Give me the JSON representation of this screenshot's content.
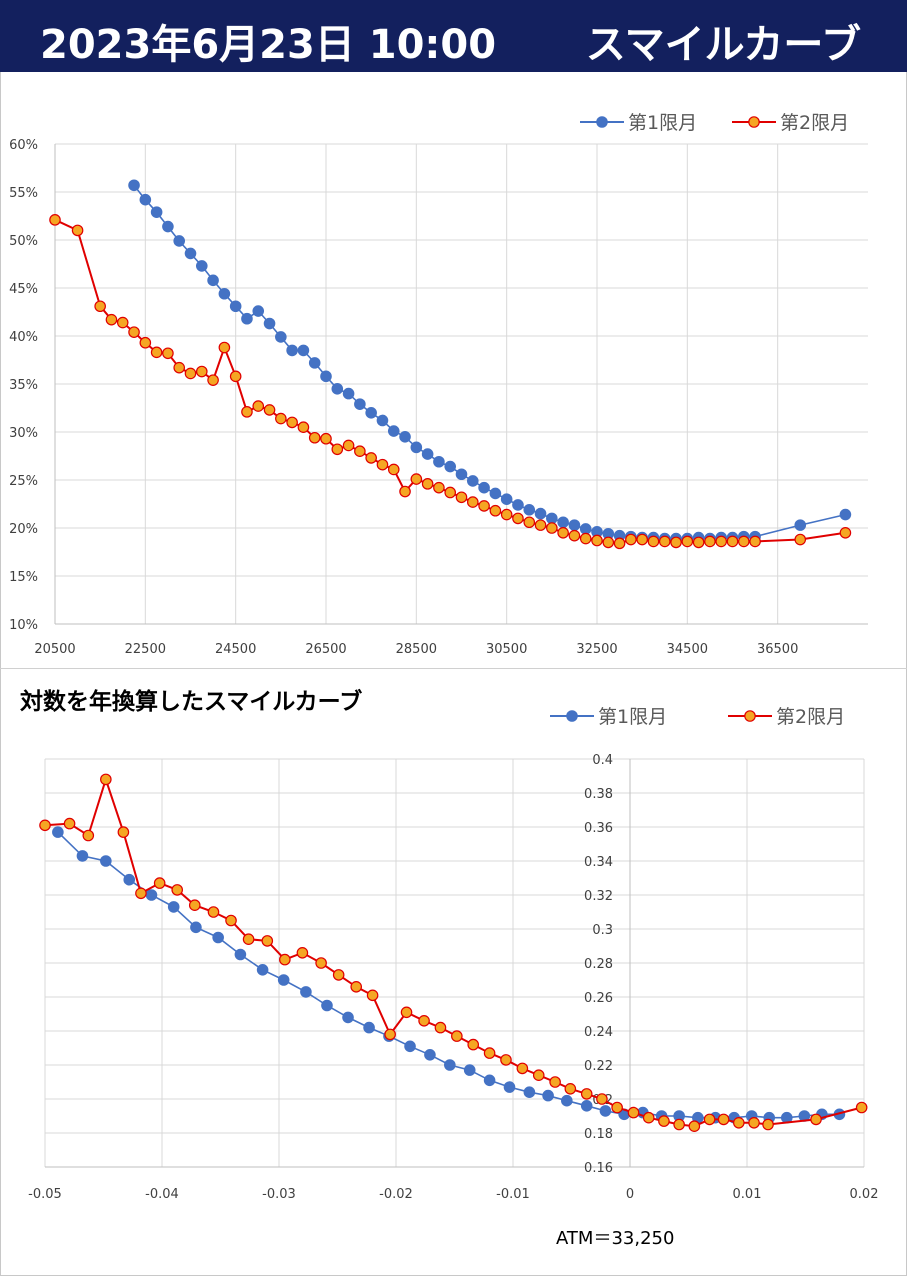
{
  "header": {
    "date": "2023年6月23日 10:00",
    "title": "スマイルカーブ"
  },
  "colors": {
    "banner_bg": "#13205e",
    "series1": "#4472c4",
    "series2_line": "#e00000",
    "series2_fill": "#f5a623"
  },
  "chart_data": [
    {
      "type": "line",
      "title": "",
      "xlabel": "",
      "ylabel": "",
      "xlim": [
        20500,
        38500
      ],
      "ylim": [
        10,
        60
      ],
      "x_ticks": [
        20500,
        22500,
        24500,
        26500,
        28500,
        30500,
        32500,
        34500,
        36500
      ],
      "x_tick_labels": [
        "20500",
        "22500",
        "24500",
        "26500",
        "28500",
        "30500",
        "32500",
        "34500",
        "36500"
      ],
      "y_ticks": [
        10,
        15,
        20,
        25,
        30,
        35,
        40,
        45,
        50,
        55,
        60
      ],
      "y_tick_labels": [
        "10%",
        "15%",
        "20%",
        "25%",
        "30%",
        "35%",
        "40%",
        "45%",
        "50%",
        "55%",
        "60%"
      ],
      "grid": true,
      "legend": "top-right",
      "series": [
        {
          "name": "第1限月",
          "x": [
            22250,
            22500,
            22750,
            23000,
            23250,
            23500,
            23750,
            24000,
            24250,
            24500,
            24750,
            25000,
            25250,
            25500,
            25750,
            26000,
            26250,
            26500,
            26750,
            27000,
            27250,
            27500,
            27750,
            28000,
            28250,
            28500,
            28750,
            29000,
            29250,
            29500,
            29750,
            30000,
            30250,
            30500,
            30750,
            31000,
            31250,
            31500,
            31750,
            32000,
            32250,
            32500,
            32750,
            33000,
            33250,
            33500,
            33750,
            34000,
            34250,
            34500,
            34750,
            35000,
            35250,
            35500,
            35750,
            36000,
            37000,
            38000
          ],
          "values": [
            55.7,
            54.2,
            52.9,
            51.4,
            49.9,
            48.6,
            47.3,
            45.8,
            44.4,
            43.1,
            41.8,
            42.6,
            41.3,
            39.9,
            38.5,
            38.5,
            37.2,
            35.8,
            34.5,
            34.0,
            32.9,
            32.0,
            31.2,
            30.1,
            29.5,
            28.4,
            27.7,
            26.9,
            26.4,
            25.6,
            24.9,
            24.2,
            23.6,
            23.0,
            22.4,
            21.9,
            21.5,
            21.0,
            20.6,
            20.3,
            19.9,
            19.6,
            19.4,
            19.2,
            19.1,
            19.0,
            19.0,
            18.9,
            18.9,
            18.9,
            19.0,
            18.9,
            19.0,
            19.0,
            19.1,
            19.1,
            20.3,
            21.4
          ]
        },
        {
          "name": "第2限月",
          "x": [
            20500,
            21000,
            21500,
            21750,
            22000,
            22250,
            22500,
            22750,
            23000,
            23250,
            23500,
            23750,
            24000,
            24250,
            24500,
            24750,
            25000,
            25250,
            25500,
            25750,
            26000,
            26250,
            26500,
            26750,
            27000,
            27250,
            27500,
            27750,
            28000,
            28250,
            28500,
            28750,
            29000,
            29250,
            29500,
            29750,
            30000,
            30250,
            30500,
            30750,
            31000,
            31250,
            31500,
            31750,
            32000,
            32250,
            32500,
            32750,
            33000,
            33250,
            33500,
            33750,
            34000,
            34250,
            34500,
            34750,
            35000,
            35250,
            35500,
            35750,
            36000,
            37000,
            38000
          ],
          "values": [
            52.1,
            51.0,
            43.1,
            41.7,
            41.4,
            40.4,
            39.3,
            38.3,
            38.2,
            36.7,
            36.1,
            36.3,
            35.4,
            38.8,
            35.8,
            32.1,
            32.7,
            32.3,
            31.4,
            31.0,
            30.5,
            29.4,
            29.3,
            28.2,
            28.6,
            28.0,
            27.3,
            26.6,
            26.1,
            23.8,
            25.1,
            24.6,
            24.2,
            23.7,
            23.2,
            22.7,
            22.3,
            21.8,
            21.4,
            21.0,
            20.6,
            20.3,
            20.0,
            19.5,
            19.2,
            18.9,
            18.7,
            18.5,
            18.4,
            18.8,
            18.8,
            18.6,
            18.6,
            18.5,
            18.6,
            18.5,
            18.6,
            18.6,
            18.6,
            18.6,
            18.6,
            18.8,
            19.5
          ]
        }
      ]
    },
    {
      "type": "line",
      "title": "対数を年換算したスマイルカーブ",
      "xlabel": "",
      "ylabel": "",
      "xlim": [
        -0.05,
        0.02
      ],
      "ylim": [
        0.16,
        0.4
      ],
      "x_ticks": [
        -0.05,
        -0.04,
        -0.03,
        -0.02,
        -0.01,
        0,
        0.01,
        0.02
      ],
      "x_tick_labels": [
        "-0.05",
        "-0.04",
        "-0.03",
        "-0.02",
        "-0.01",
        "0",
        "0.01",
        "0.02"
      ],
      "y_ticks": [
        0.16,
        0.18,
        0.2,
        0.22,
        0.24,
        0.26,
        0.28,
        0.3,
        0.32,
        0.34,
        0.36,
        0.38,
        0.4
      ],
      "y_tick_labels": [
        "0.16",
        "0.18",
        "0.2",
        "0.22",
        "0.24",
        "0.26",
        "0.28",
        "0.3",
        "0.32",
        "0.34",
        "0.36",
        "0.38",
        "0.4"
      ],
      "grid": true,
      "legend": "top-right",
      "annotation": "ATM＝33,250",
      "series": [
        {
          "name": "第1限月",
          "x": [
            -0.0489,
            -0.0468,
            -0.0448,
            -0.0428,
            -0.0409,
            -0.039,
            -0.0371,
            -0.0352,
            -0.0333,
            -0.0314,
            -0.0296,
            -0.0277,
            -0.0259,
            -0.0241,
            -0.0223,
            -0.0206,
            -0.0188,
            -0.0171,
            -0.0154,
            -0.0137,
            -0.012,
            -0.0103,
            -0.0086,
            -0.007,
            -0.0054,
            -0.0037,
            -0.0021,
            -0.0005,
            0.0011,
            0.0027,
            0.0042,
            0.0058,
            0.0073,
            0.0089,
            0.0104,
            0.0119,
            0.0134,
            0.0149,
            0.0164,
            0.0179
          ],
          "values": [
            0.357,
            0.343,
            0.34,
            0.329,
            0.32,
            0.313,
            0.301,
            0.295,
            0.285,
            0.276,
            0.27,
            0.263,
            0.255,
            0.248,
            0.242,
            0.237,
            0.231,
            0.226,
            0.22,
            0.217,
            0.211,
            0.207,
            0.204,
            0.202,
            0.199,
            0.196,
            0.193,
            0.191,
            0.192,
            0.19,
            0.19,
            0.189,
            0.189,
            0.189,
            0.19,
            0.189,
            0.189,
            0.19,
            0.191,
            0.191
          ]
        },
        {
          "name": "第2限月",
          "x": [
            -0.05,
            -0.0479,
            -0.0463,
            -0.0448,
            -0.0433,
            -0.0418,
            -0.0402,
            -0.0387,
            -0.0372,
            -0.0356,
            -0.0341,
            -0.0326,
            -0.031,
            -0.0295,
            -0.028,
            -0.0264,
            -0.0249,
            -0.0234,
            -0.022,
            -0.0205,
            -0.0191,
            -0.0176,
            -0.0162,
            -0.0148,
            -0.0134,
            -0.012,
            -0.0106,
            -0.0092,
            -0.0078,
            -0.0064,
            -0.0051,
            -0.0037,
            -0.0024,
            -0.0011,
            0.0003,
            0.0016,
            0.0029,
            0.0042,
            0.0055,
            0.0068,
            0.008,
            0.0093,
            0.0106,
            0.0118,
            0.0159,
            0.0198
          ],
          "values": [
            0.361,
            0.362,
            0.355,
            0.388,
            0.357,
            0.321,
            0.327,
            0.323,
            0.314,
            0.31,
            0.305,
            0.294,
            0.293,
            0.282,
            0.286,
            0.28,
            0.273,
            0.266,
            0.261,
            0.238,
            0.251,
            0.246,
            0.242,
            0.237,
            0.232,
            0.227,
            0.223,
            0.218,
            0.214,
            0.21,
            0.206,
            0.203,
            0.2,
            0.195,
            0.192,
            0.189,
            0.187,
            0.185,
            0.184,
            0.188,
            0.188,
            0.186,
            0.186,
            0.185,
            0.188,
            0.195
          ]
        }
      ]
    }
  ]
}
